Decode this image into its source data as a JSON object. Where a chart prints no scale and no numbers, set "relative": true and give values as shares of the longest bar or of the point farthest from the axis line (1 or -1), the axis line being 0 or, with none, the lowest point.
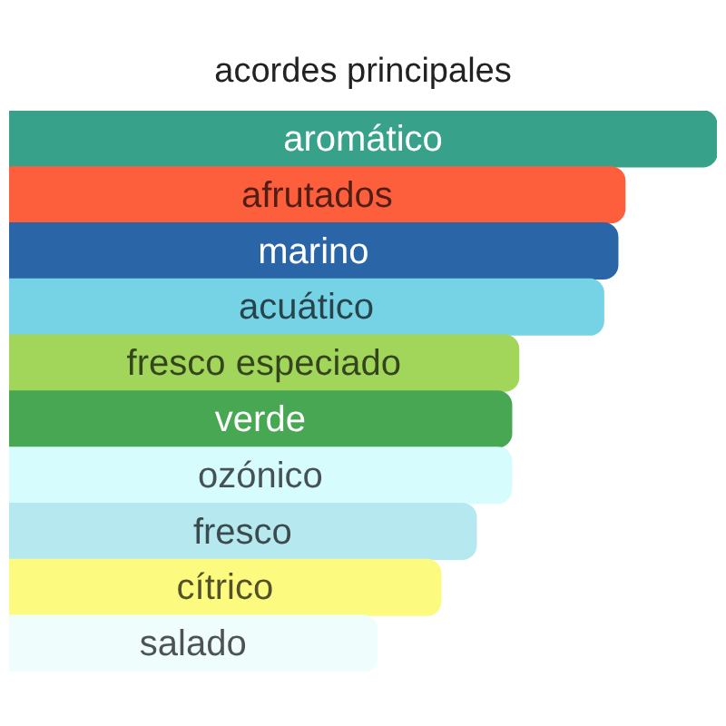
{
  "chart_data": {
    "type": "bar",
    "orientation": "horizontal",
    "relative": true,
    "title": "acordes principales",
    "categories": [
      "aromático",
      "afrutados",
      "marino",
      "acuático",
      "fresco especiado",
      "verde",
      "ozónico",
      "fresco",
      "cítrico",
      "salado"
    ],
    "values": [
      1,
      0.87,
      0.86,
      0.84,
      0.72,
      0.71,
      0.71,
      0.66,
      0.61,
      0.52
    ],
    "colors": [
      "#37a18a",
      "#fd5f3d",
      "#2a65a8",
      "#76d3e6",
      "#a2d65a",
      "#47a753",
      "#d7fcfd",
      "#b6e9ef",
      "#fdfb7f",
      "#effefd"
    ]
  }
}
